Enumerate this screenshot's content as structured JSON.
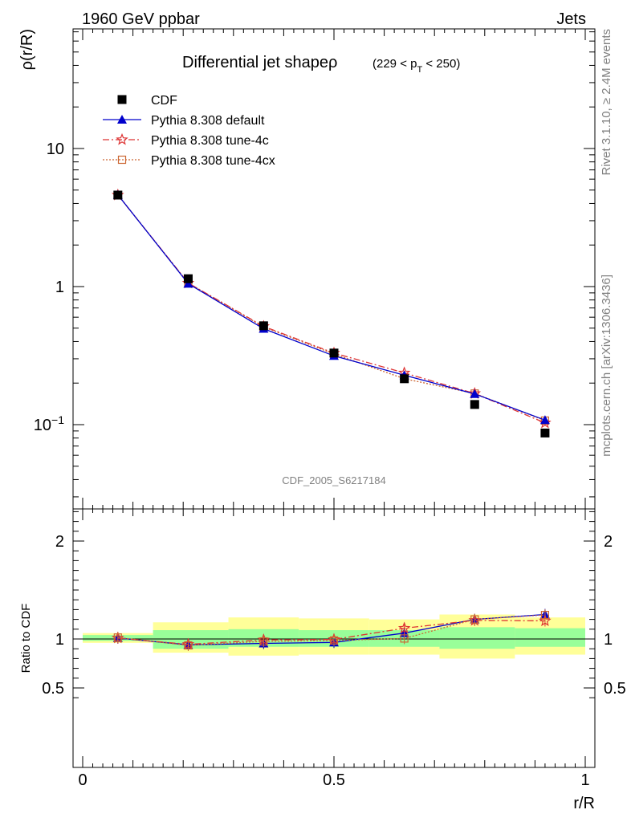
{
  "header": {
    "energy": "1960 GeV ppbar",
    "category": "Jets"
  },
  "top_panel": {
    "title_main": "Differential jet shapeρ",
    "title_range_pre": "(229 < p",
    "title_range_sub": "T",
    "title_range_post": " < 250)",
    "ylabel": "ρ(r/R)",
    "watermark": "CDF_2005_S6217184"
  },
  "side_text": {
    "rivet": "Rivet 3.1.10, ≥ 2.4M events",
    "mcplots": "mcplots.cern.ch [arXiv:1306.3436]"
  },
  "bottom_panel": {
    "ylabel": "Ratio to CDF",
    "xlabel": "r/R"
  },
  "legend": [
    {
      "label": "CDF"
    },
    {
      "label": "Pythia 8.308 default"
    },
    {
      "label": "Pythia 8.308 tune-4c"
    },
    {
      "label": "Pythia 8.308 tune-4cx"
    }
  ],
  "colors": {
    "data": "#000000",
    "default": "#0000cc",
    "tune4c": "#dd3333",
    "tune4cx": "#cc6633",
    "band_inner": "#99ff99",
    "band_outer": "#ffff99"
  },
  "chart_data": [
    {
      "type": "line",
      "title": "Differential jet shapeρ (229 < p_T < 250)",
      "xlabel": "",
      "ylabel": "ρ(r/R)",
      "xlim": [
        0,
        1
      ],
      "ylim": [
        0.03,
        80
      ],
      "yscale": "log",
      "x_ticks": [],
      "y_ticks": [
        {
          "v": 0.1,
          "base": "10",
          "exp": "−1"
        },
        {
          "v": 1,
          "label": "1"
        },
        {
          "v": 10,
          "label": "10"
        }
      ],
      "x": [
        0.07,
        0.21,
        0.36,
        0.5,
        0.64,
        0.78,
        0.92
      ],
      "series": [
        {
          "name": "CDF",
          "values": [
            4.6,
            1.14,
            0.52,
            0.33,
            0.215,
            0.14,
            0.087
          ]
        },
        {
          "name": "Pythia 8.308 default",
          "values": [
            4.62,
            1.05,
            0.495,
            0.315,
            0.228,
            0.167,
            0.108
          ]
        },
        {
          "name": "Pythia 8.308 tune-4c",
          "values": [
            4.6,
            1.06,
            0.515,
            0.33,
            0.237,
            0.168,
            0.103
          ]
        },
        {
          "name": "Pythia 8.308 tune-4cx",
          "values": [
            4.62,
            1.06,
            0.51,
            0.325,
            0.215,
            0.168,
            0.107
          ]
        }
      ]
    },
    {
      "type": "line",
      "title": "",
      "xlabel": "r/R",
      "ylabel": "Ratio to CDF",
      "xlim": [
        0,
        1
      ],
      "ylim": [
        0.35,
        2.35
      ],
      "x_ticks": [
        {
          "v": 0,
          "label": "0"
        },
        {
          "v": 0.5,
          "label": "0.5"
        },
        {
          "v": 1,
          "label": "1"
        }
      ],
      "y_ticks": [
        {
          "v": 0.5,
          "label": "0.5"
        },
        {
          "v": 1,
          "label": "1"
        },
        {
          "v": 2,
          "label": "2"
        }
      ],
      "x": [
        0.07,
        0.21,
        0.36,
        0.5,
        0.64,
        0.78,
        0.92
      ],
      "bins": [
        {
          "lo": 0.0,
          "hi": 0.14,
          "inner": [
            0.98,
            1.04
          ],
          "outer": [
            0.96,
            1.06
          ]
        },
        {
          "lo": 0.14,
          "hi": 0.29,
          "inner": [
            0.9,
            1.09
          ],
          "outer": [
            0.86,
            1.17
          ]
        },
        {
          "lo": 0.29,
          "hi": 0.43,
          "inner": [
            0.92,
            1.1
          ],
          "outer": [
            0.83,
            1.22
          ]
        },
        {
          "lo": 0.43,
          "hi": 0.57,
          "inner": [
            0.92,
            1.09
          ],
          "outer": [
            0.84,
            1.21
          ]
        },
        {
          "lo": 0.57,
          "hi": 0.71,
          "inner": [
            0.92,
            1.09
          ],
          "outer": [
            0.84,
            1.2
          ]
        },
        {
          "lo": 0.71,
          "hi": 0.86,
          "inner": [
            0.9,
            1.12
          ],
          "outer": [
            0.8,
            1.25
          ]
        },
        {
          "lo": 0.86,
          "hi": 1.0,
          "inner": [
            0.92,
            1.11
          ],
          "outer": [
            0.84,
            1.22
          ]
        }
      ],
      "series": [
        {
          "name": "Pythia 8.308 default",
          "values": [
            1.01,
            0.94,
            0.955,
            0.965,
            1.06,
            1.2,
            1.25
          ]
        },
        {
          "name": "Pythia 8.308 tune-4c",
          "values": [
            1.01,
            0.945,
            0.99,
            0.995,
            1.11,
            1.19,
            1.185
          ]
        },
        {
          "name": "Pythia 8.308 tune-4cx",
          "values": [
            1.015,
            0.935,
            0.975,
            0.985,
            1.005,
            1.2,
            1.245
          ]
        }
      ]
    }
  ]
}
